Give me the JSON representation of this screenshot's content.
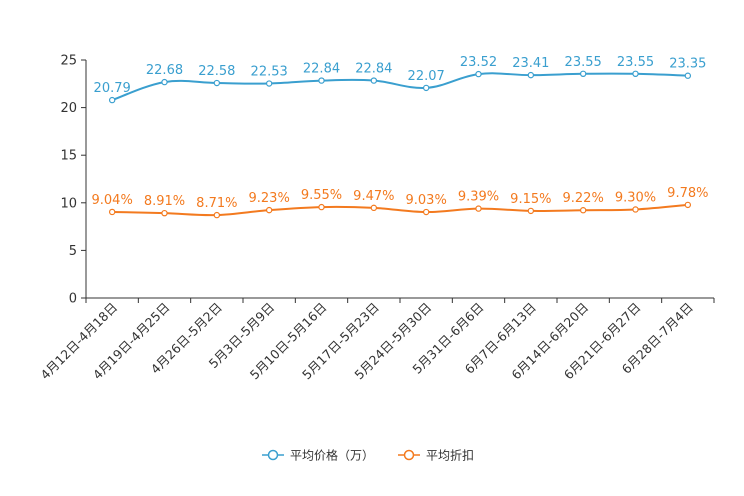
{
  "chart_data": {
    "type": "line",
    "categories": [
      "4月12日-4月18日",
      "4月19日-4月25日",
      "4月26日-5月2日",
      "5月3日-5月9日",
      "5月10日-5月16日",
      "5月17日-5月23日",
      "5月24日-5月30日",
      "5月31日-6月6日",
      "6月7日-6月13日",
      "6月14日-6月20日",
      "6月21日-6月27日",
      "6月28日-7月4日"
    ],
    "ylim": [
      0,
      25
    ],
    "yticks": [
      0,
      5,
      10,
      15,
      20,
      25
    ],
    "series": [
      {
        "name": "平均价格（万）",
        "color": "#3a9fcf",
        "values": [
          20.79,
          22.68,
          22.58,
          22.53,
          22.84,
          22.84,
          22.07,
          23.52,
          23.41,
          23.55,
          23.55,
          23.35
        ],
        "labels": [
          "20.79",
          "22.68",
          "22.58",
          "22.53",
          "22.84",
          "22.84",
          "22.07",
          "23.52",
          "23.41",
          "23.55",
          "23.55",
          "23.35"
        ]
      },
      {
        "name": "平均折扣",
        "color": "#f37a1f",
        "values": [
          9.04,
          8.91,
          8.71,
          9.23,
          9.55,
          9.47,
          9.03,
          9.39,
          9.15,
          9.22,
          9.3,
          9.78
        ],
        "labels": [
          "9.04%",
          "8.91%",
          "8.71%",
          "9.23%",
          "9.55%",
          "9.47%",
          "9.03%",
          "9.39%",
          "9.15%",
          "9.22%",
          "9.30%",
          "9.78%"
        ]
      }
    ],
    "title": "",
    "xlabel": "",
    "ylabel": "",
    "legend_position": "bottom-center"
  }
}
